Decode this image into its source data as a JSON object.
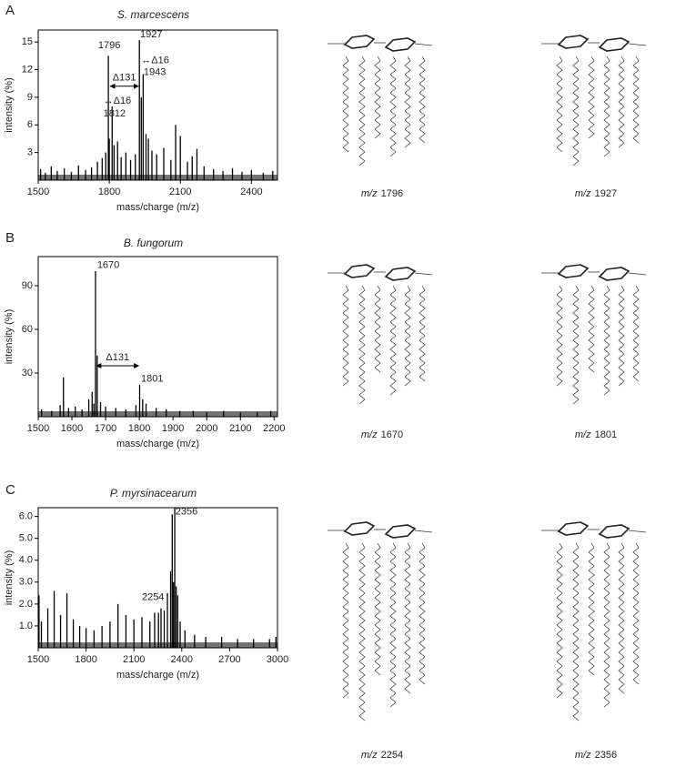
{
  "chart_data": [
    {
      "type": "spectrum",
      "panel": "A",
      "title": "S. marcescens",
      "x_label": "mass/charge (m/z)",
      "y_label": "intensity (%)",
      "xlim": [
        1500,
        2510
      ],
      "xticks": [
        1500,
        1800,
        2100,
        2400
      ],
      "ylim": [
        0,
        16.3
      ],
      "yticks": [
        3,
        6,
        9,
        12,
        15
      ],
      "color": "#000000",
      "x": [
        1510,
        1530,
        1555,
        1580,
        1610,
        1640,
        1670,
        1700,
        1725,
        1750,
        1770,
        1785,
        1796,
        1800,
        1812,
        1820,
        1835,
        1850,
        1870,
        1890,
        1910,
        1927,
        1935,
        1943,
        1955,
        1965,
        1980,
        2000,
        2030,
        2060,
        2080,
        2100,
        2130,
        2150,
        2170,
        2200,
        2240,
        2280,
        2320,
        2360,
        2400,
        2450,
        2490
      ],
      "values": [
        1.2,
        0.8,
        1.5,
        1.0,
        1.3,
        0.9,
        1.6,
        1.1,
        1.4,
        2.0,
        2.4,
        3.0,
        13.5,
        4.5,
        8.0,
        3.8,
        4.2,
        2.5,
        3.0,
        2.2,
        2.8,
        15.2,
        9.0,
        11.5,
        5.0,
        4.5,
        3.2,
        2.8,
        3.5,
        2.2,
        6.0,
        4.8,
        2.0,
        2.6,
        3.4,
        1.5,
        1.2,
        1.0,
        1.3,
        0.9,
        1.1,
        0.8,
        1.0
      ],
      "annotations": [
        {
          "text": "1796",
          "x": 1753,
          "y": 14.6
        },
        {
          "text": "1927",
          "x": 1930,
          "y": 15.8
        },
        {
          "text": "↔Δ16",
          "x": 1935,
          "y": 13.0
        },
        {
          "text": "1943",
          "x": 1945,
          "y": 11.7
        },
        {
          "text": "↔Δ16",
          "x": 1775,
          "y": 8.6
        },
        {
          "text": "1812",
          "x": 1775,
          "y": 7.2
        }
      ],
      "arrows": [
        {
          "text": "Δ131",
          "x": [
            1800,
            1927
          ],
          "y": 10.2
        }
      ],
      "structures": [
        {
          "prefix": "m/z",
          "mass": "1796"
        },
        {
          "prefix": "m/z",
          "mass": "1927"
        }
      ]
    },
    {
      "type": "spectrum",
      "panel": "B",
      "title": "B. fungorum",
      "x_label": "mass/charge (m/z)",
      "y_label": "intensity (%)",
      "xlim": [
        1500,
        2210
      ],
      "xticks": [
        1500,
        1600,
        1700,
        1800,
        1900,
        2000,
        2100,
        2200
      ],
      "ylim": [
        0,
        110
      ],
      "yticks": [
        30,
        60,
        90
      ],
      "color": "#000000",
      "x": [
        1510,
        1540,
        1565,
        1575,
        1590,
        1610,
        1630,
        1650,
        1660,
        1665,
        1670,
        1675,
        1685,
        1700,
        1730,
        1760,
        1790,
        1801,
        1810,
        1820,
        1850,
        1880,
        1920,
        1960,
        2000,
        2050,
        2100,
        2150,
        2190
      ],
      "values": [
        5,
        4,
        8,
        27,
        6,
        7,
        5,
        12,
        17,
        9,
        100,
        42,
        10,
        7,
        6,
        5,
        8,
        22,
        12,
        9,
        6,
        5,
        4,
        4,
        3,
        4,
        3,
        3,
        4
      ],
      "annotations": [
        {
          "text": "1670",
          "x": 1675,
          "y": 104
        },
        {
          "text": "1801",
          "x": 1805,
          "y": 26
        }
      ],
      "arrows": [
        {
          "text": "Δ131",
          "x": [
            1670,
            1801
          ],
          "y": 35
        }
      ],
      "structures": [
        {
          "prefix": "m/z",
          "mass": "1670"
        },
        {
          "prefix": "m/z",
          "mass": "1801"
        }
      ]
    },
    {
      "type": "spectrum",
      "panel": "C",
      "title": "P. myrsinacearum",
      "x_label": "mass/charge (m/z)",
      "y_label": "intensity (%)",
      "xlim": [
        1500,
        3000
      ],
      "xticks": [
        1500,
        1800,
        2100,
        2400,
        2700,
        3000
      ],
      "ylim": [
        0,
        6.4
      ],
      "yticks": [
        {
          "value": 1,
          "label": "1.0"
        },
        {
          "value": 2,
          "label": "2.0"
        },
        {
          "value": 3,
          "label": "3.0"
        },
        {
          "value": 4,
          "label": "4.0"
        },
        {
          "value": 5,
          "label": "5.0"
        },
        {
          "value": 6,
          "label": "6.0"
        }
      ],
      "color": "#000000",
      "x": [
        1505,
        1520,
        1560,
        1600,
        1640,
        1680,
        1720,
        1760,
        1800,
        1850,
        1900,
        1950,
        2000,
        2050,
        2100,
        2150,
        2200,
        2230,
        2254,
        2270,
        2290,
        2310,
        2330,
        2340,
        2348,
        2356,
        2365,
        2375,
        2390,
        2420,
        2480,
        2550,
        2650,
        2750,
        2850,
        2950,
        2990
      ],
      "values": [
        2.4,
        1.2,
        1.8,
        2.6,
        1.5,
        2.5,
        1.3,
        1.0,
        0.9,
        0.8,
        1.0,
        1.2,
        2.0,
        1.5,
        1.3,
        1.4,
        1.2,
        1.6,
        1.6,
        1.8,
        1.7,
        2.5,
        3.5,
        6.1,
        3.0,
        6.4,
        2.8,
        2.4,
        1.2,
        0.8,
        0.6,
        0.5,
        0.5,
        0.4,
        0.4,
        0.4,
        0.5
      ],
      "annotations": [
        {
          "text": "2356",
          "x": 2360,
          "y": 6.2
        },
        {
          "text": "2254",
          "x": 2150,
          "y": 2.3
        }
      ],
      "arrows": [],
      "structures": [
        {
          "prefix": "m/z",
          "mass": "2254"
        },
        {
          "prefix": "m/z",
          "mass": "2356"
        }
      ]
    }
  ]
}
